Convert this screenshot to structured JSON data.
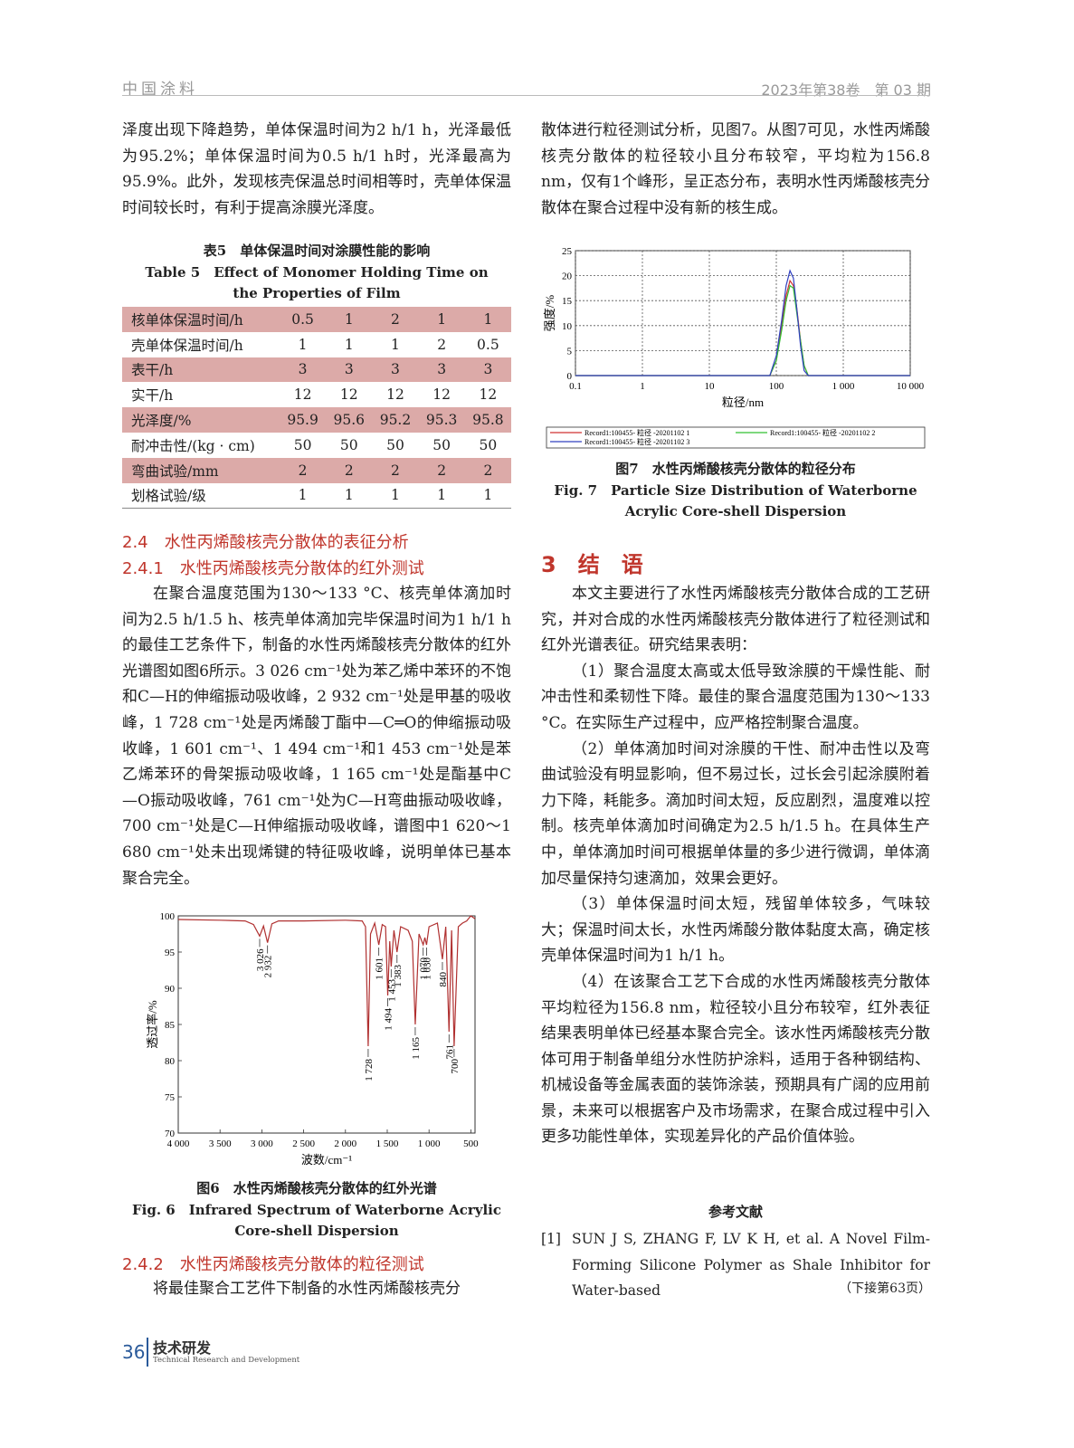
{
  "document": {
    "header": {
      "journal": "中国涂料",
      "issue": "2023年第38卷　第 03 期"
    },
    "col_left": {
      "p1": "泽度出现下降趋势，单体保温时间为2 h/1 h，光泽最低为95.2%；单体保温时间为0.5 h/1 h时，光泽最高为95.9%。此外，发现核壳保温总时间相等时，壳单体保温时间较长时，有利于提高涂膜光泽度。",
      "table5": {
        "caption_cn": "表5　单体保温时间对涂膜性能的影响",
        "caption_en": "Table 5　Effect of Monomer Holding Time on the Properties of Film",
        "rows": [
          [
            "核单体保温时间/h",
            "0.5",
            "1",
            "2",
            "1",
            "1"
          ],
          [
            "壳单体保温时间/h",
            "1",
            "1",
            "1",
            "2",
            "0.5"
          ],
          [
            "表干/h",
            "3",
            "3",
            "3",
            "3",
            "3"
          ],
          [
            "实干/h",
            "12",
            "12",
            "12",
            "12",
            "12"
          ],
          [
            "光泽度/%",
            "95.9",
            "95.6",
            "95.2",
            "95.3",
            "95.8"
          ],
          [
            "耐冲击性/(kg · cm)",
            "50",
            "50",
            "50",
            "50",
            "50"
          ],
          [
            "弯曲试验/mm",
            "2",
            "2",
            "2",
            "2",
            "2"
          ],
          [
            "划格试验/级",
            "1",
            "1",
            "1",
            "1",
            "1"
          ]
        ]
      },
      "sec_2_4": "2.4　水性丙烯酸核壳分散体的表征分析",
      "sec_2_4_1": "2.4.1　水性丙烯酸核壳分散体的红外测试",
      "p2": "在聚合温度范围为130～133 °C、核壳单体滴加时间为2.5 h/1.5 h、核壳单体滴加完毕保温时间为1 h/1 h的最佳工艺条件下，制备的水性丙烯酸核壳分散体的红外光谱图如图6所示。3 026 cm⁻¹处为苯乙烯中苯环的不饱和C—H的伸缩振动吸收峰，2 932 cm⁻¹处是甲基的吸收峰，1 728 cm⁻¹处是丙烯酸丁酯中—C═O的伸缩振动吸收峰，1 601 cm⁻¹、1 494 cm⁻¹和1 453 cm⁻¹处是苯乙烯苯环的骨架振动吸收峰，1 165 cm⁻¹处是酯基中C—O振动吸收峰，761 cm⁻¹处为C—H弯曲振动吸收峰，700 cm⁻¹处是C—H伸缩振动吸收峰，谱图中1 620～1 680 cm⁻¹处未出现烯键的特征吸收峰，说明单体已基本聚合完全。",
      "fig6_caption_cn": "图6　水性丙烯酸核壳分散体的红外光谱",
      "fig6_caption_en": "Fig. 6　Infrared Spectrum of Waterborne Acrylic Core-shell Dispersion",
      "sec_2_4_2": "2.4.2　水性丙烯酸核壳分散体的粒径测试",
      "p3": "将最佳聚合工艺件下制备的水性丙烯酸核壳分"
    },
    "col_right": {
      "p1": "散体进行粒径测试分析，见图7。从图7可见，水性丙烯酸核壳分散体的粒径较小且分布较窄，平均粒为156.8 nm，仅有1个峰形，呈正态分布，表明水性丙烯酸核壳分散体在聚合过程中没有新的核生成。",
      "fig7_caption_cn": "图7　水性丙烯酸核壳分散体的粒径分布",
      "fig7_caption_en": "Fig. 7　Particle Size Distribution of Waterborne Acrylic Core-shell Dispersion",
      "sec3": "3　结　语",
      "p2": "本文主要进行了水性丙烯酸核壳分散体合成的工艺研究，并对合成的水性丙烯酸核壳分散体进行了粒径测试和红外光谱表征。研究结果表明：",
      "items": [
        "（1）聚合温度太高或太低导致涂膜的干燥性能、耐冲击性和柔韧性下降。最佳的聚合温度范围为130～133 °C。在实际生产过程中，应严格控制聚合温度。",
        "（2）单体滴加时间对涂膜的干性、耐冲击性以及弯曲试验没有明显影响，但不易过长，过长会引起涂膜附着力下降，耗能多。滴加时间太短，反应剧烈，温度难以控制。核壳单体滴加时间确定为2.5 h/1.5 h。在具体生产中，单体滴加时间可根据单体量的多少进行微调，单体滴加尽量保持匀速滴加，效果会更好。",
        "（3）单体保温时间太短，残留单体较多，气味较大；保温时间太长，水性丙烯酸分散体黏度太高，确定核壳单体保温时间为1 h/1 h。",
        "（4）在该聚合工艺下合成的水性丙烯酸核壳分散体平均粒径为156.8 nm，粒径较小且分布较窄，红外表征结果表明单体已经基本聚合完全。该水性丙烯酸核壳分散体可用于制备单组分水性防护涂料，适用于各种钢结构、机械设备等金属表面的装饰涂装，预期具有广阔的应用前景，未来可以根据客户及市场需求，在聚合成过程中引入更多功能性单体，实现差异化的产品价值体验。"
      ],
      "refs_title": "参考文献",
      "ref1_num": "[1]",
      "ref1_text": "SUN J S, ZHANG F, LV K H, et al. A Novel Film-Forming Silicone Polymer as Shale Inhibitor for Water-based",
      "continued": "（下接第63页）"
    },
    "footer": {
      "page": "36",
      "section_cn": "技术研发",
      "section_en": "Technical Research and Development"
    }
  },
  "chart_data": [
    {
      "type": "line",
      "xlabel": "波数/cm⁻¹",
      "ylabel": "透过率/%",
      "color": "#b03030",
      "grid": false,
      "x": [
        4000,
        3500,
        3200,
        3100,
        3026,
        2980,
        2932,
        2880,
        2800,
        2500,
        2000,
        1800,
        1760,
        1728,
        1700,
        1650,
        1601,
        1560,
        1520,
        1494,
        1470,
        1453,
        1420,
        1383,
        1340,
        1250,
        1200,
        1165,
        1120,
        1070,
        1050,
        1030,
        1000,
        900,
        840,
        800,
        761,
        730,
        700,
        650,
        600,
        550,
        500,
        450
      ],
      "values": [
        99.5,
        99.4,
        99.3,
        98.8,
        97.2,
        98.6,
        96.3,
        98.9,
        99.3,
        99.3,
        99.4,
        99.3,
        98.5,
        82.0,
        97.5,
        99.0,
        96.0,
        98.8,
        98.5,
        89.0,
        96.5,
        93.0,
        98.0,
        95.0,
        98.5,
        98.0,
        96.5,
        85.0,
        97.5,
        96.0,
        97.0,
        96.0,
        98.5,
        99.0,
        94.0,
        98.5,
        84.0,
        98.0,
        82.0,
        98.5,
        99.0,
        99.3,
        100,
        99.6
      ],
      "xlim": [
        4000,
        450
      ],
      "ylim": [
        70,
        100
      ],
      "xticks": [
        {
          "value": 4000,
          "label": "4 000"
        },
        {
          "value": 3500,
          "label": "3 500"
        },
        {
          "value": 3000,
          "label": "3 000"
        },
        {
          "value": 2500,
          "label": "2 500"
        },
        {
          "value": 2000,
          "label": "2 000"
        },
        {
          "value": 1500,
          "label": "1 500"
        },
        {
          "value": 1000,
          "label": "1 000"
        },
        500
      ],
      "yticks": [
        70,
        75,
        80,
        85,
        90,
        95,
        100
      ],
      "annotations": [
        {
          "x": 3026,
          "label": "3 026"
        },
        {
          "x": 2932,
          "label": "2 932"
        },
        {
          "x": 1728,
          "label": "1 728"
        },
        {
          "x": 1601,
          "label": "1 601"
        },
        {
          "x": 1494,
          "label": "1 494"
        },
        {
          "x": 1453,
          "label": "1 453"
        },
        {
          "x": 1383,
          "label": "1 383"
        },
        {
          "x": 1165,
          "label": "1 165"
        },
        {
          "x": 1070,
          "label": "1 070"
        },
        {
          "x": 1030,
          "label": "1 030"
        },
        {
          "x": 840,
          "label": "840"
        },
        {
          "x": 761,
          "label": "761"
        },
        {
          "x": 700,
          "label": "700"
        }
      ]
    },
    {
      "type": "line",
      "xlabel": "粒径/nm",
      "ylabel": "强度/%",
      "xscale": "log",
      "grid": true,
      "legend": "bottom",
      "x": [
        0.1,
        1,
        10,
        50,
        80,
        100,
        120,
        140,
        160,
        180,
        200,
        230,
        260,
        300,
        1000,
        10000
      ],
      "series": [
        {
          "name": "Record1:100455- 粒径 -20201102 1",
          "color": "#d03030",
          "values": [
            0,
            0,
            0,
            0,
            0,
            3,
            10,
            16,
            19,
            18,
            14,
            7,
            2,
            0,
            0,
            0
          ]
        },
        {
          "name": "Record1:100455- 粒径 -20201102 2",
          "color": "#30c030",
          "values": [
            0,
            0,
            0,
            0,
            0,
            3,
            9,
            15,
            18,
            17.5,
            13,
            7,
            2,
            0,
            0,
            0
          ]
        },
        {
          "name": "Record1:100455- 粒径 -20201102 3",
          "color": "#3040c0",
          "values": [
            0,
            0,
            0,
            0,
            0,
            4,
            11,
            18,
            21,
            19.5,
            14,
            6,
            1,
            0,
            0,
            0
          ]
        }
      ],
      "xlim": [
        0.1,
        10000
      ],
      "ylim": [
        0,
        25
      ],
      "xticks": [
        0.1,
        1,
        10,
        100,
        {
          "value": 1000,
          "label": "1 000"
        },
        {
          "value": 10000,
          "label": "10 000"
        }
      ],
      "yticks": [
        0,
        5,
        10,
        15,
        20,
        25
      ]
    }
  ]
}
